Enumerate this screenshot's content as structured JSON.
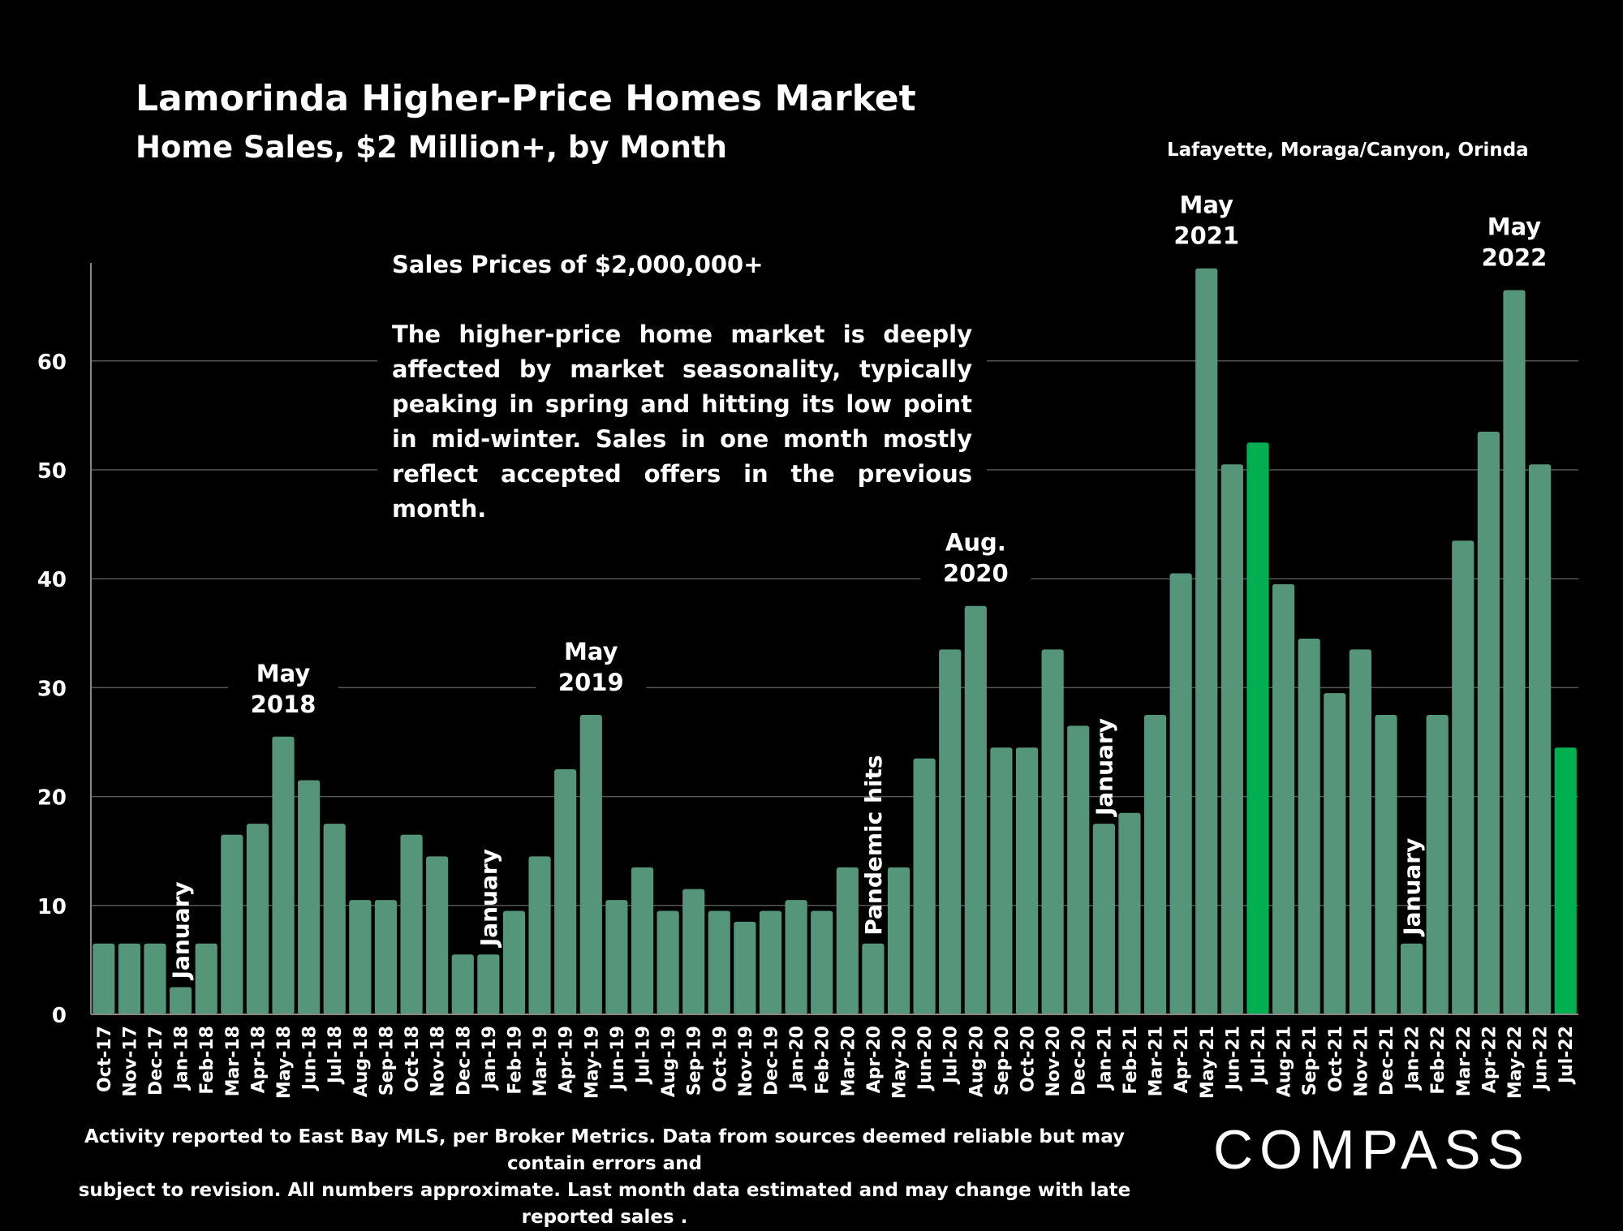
{
  "title": "Lamorinda Higher-Price Homes Market",
  "subtitle": "Home Sales, $2 Million+, by Month",
  "region": "Lafayette, Moraga/Canyon, Orinda",
  "notes": {
    "heading": "Sales Prices of $2,000,000+",
    "body": "The higher-price home market is deeply affected by market seasonality, typically peaking in spring and hitting its low point in mid-winter. Sales in one month mostly reflect accepted offers in the previous month."
  },
  "footnote": {
    "line1": "Activity reported to East Bay MLS, per Broker Metrics. Data from sources deemed reliable but may contain errors and",
    "line2": "subject to revision. All numbers approximate. Last month data estimated and may change with late reported sales ."
  },
  "logo": "COMPASS",
  "colors": {
    "bar": "#55967A",
    "highlight": "#00B050",
    "grid": "#555555",
    "background": "#000000"
  },
  "chart_data": {
    "type": "bar",
    "ylim": [
      0,
      69
    ],
    "yticks": [
      0,
      10,
      20,
      30,
      40,
      50,
      60
    ],
    "grid": true,
    "categories": [
      "Oct-17",
      "Nov-17",
      "Dec-17",
      "Jan-18",
      "Feb-18",
      "Mar-18",
      "Apr-18",
      "May-18",
      "Jun-18",
      "Jul-18",
      "Aug-18",
      "Sep-18",
      "Oct-18",
      "Nov-18",
      "Dec-18",
      "Jan-19",
      "Feb-19",
      "Mar-19",
      "Apr-19",
      "May-19",
      "Jun-19",
      "Jul-19",
      "Aug-19",
      "Sep-19",
      "Oct-19",
      "Nov-19",
      "Dec-19",
      "Jan-20",
      "Feb-20",
      "Mar-20",
      "Apr-20",
      "May-20",
      "Jun-20",
      "Jul-20",
      "Aug-20",
      "Sep-20",
      "Oct-20",
      "Nov-20",
      "Dec-20",
      "Jan-21",
      "Feb-21",
      "Mar-21",
      "Apr-21",
      "May-21",
      "Jun-21",
      "Jul-21",
      "Aug-21",
      "Sep-21",
      "Oct-21",
      "Nov-21",
      "Dec-21",
      "Jan-22",
      "Feb-22",
      "Mar-22",
      "Apr-22",
      "May-22",
      "Jun-22",
      "Jul-22"
    ],
    "values": [
      6.5,
      6.5,
      6.5,
      2.5,
      6.5,
      16.5,
      17.5,
      25.5,
      21.5,
      17.5,
      10.5,
      10.5,
      16.5,
      14.5,
      5.5,
      5.5,
      9.5,
      14.5,
      22.5,
      27.5,
      10.5,
      13.5,
      9.5,
      11.5,
      9.5,
      8.5,
      9.5,
      10.5,
      9.5,
      13.5,
      6.5,
      13.5,
      23.5,
      33.5,
      37.5,
      24.5,
      24.5,
      33.5,
      26.5,
      17.5,
      18.5,
      27.5,
      40.5,
      68.5,
      50.5,
      52.5,
      39.5,
      34.5,
      29.5,
      33.5,
      27.5,
      6.5,
      27.5,
      43.5,
      53.5,
      66.5,
      50.5,
      24.5
    ],
    "highlighted": [
      "Jul-21",
      "Jul-22"
    ],
    "annotations": [
      {
        "category": "Jan-18",
        "text": "January",
        "vertical": true
      },
      {
        "category": "May-18",
        "text": "May",
        "text2": "2018"
      },
      {
        "category": "Jan-19",
        "text": "January",
        "vertical": true
      },
      {
        "category": "May-19",
        "text": "May",
        "text2": "2019"
      },
      {
        "category": "Apr-20",
        "text": "Pandemic hits",
        "vertical": true
      },
      {
        "category": "Aug-20",
        "text": "Aug.",
        "text2": "2020"
      },
      {
        "category": "Jan-21",
        "text": "January",
        "vertical": true
      },
      {
        "category": "May-21",
        "text": "May",
        "text2": "2021"
      },
      {
        "category": "Jan-22",
        "text": "January",
        "vertical": true
      },
      {
        "category": "May-22",
        "text": "May",
        "text2": "2022"
      }
    ]
  }
}
